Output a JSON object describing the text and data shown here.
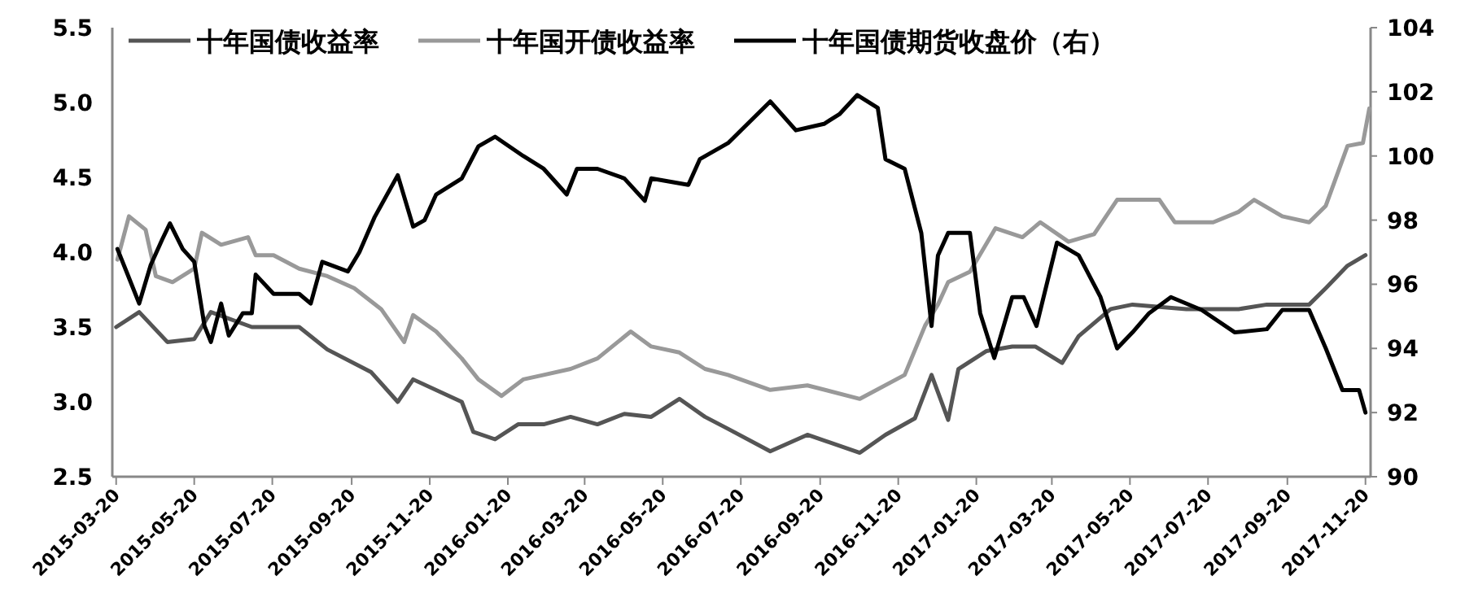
{
  "chart_data": {
    "type": "line",
    "legend": "top",
    "xlim": [
      "2015-03-17",
      "2017-11-24"
    ],
    "xticks": [
      "2015-03-20",
      "2015-05-20",
      "2015-07-20",
      "2015-09-20",
      "2015-11-20",
      "2016-01-20",
      "2016-03-20",
      "2016-05-20",
      "2016-07-20",
      "2016-09-20",
      "2016-11-20",
      "2017-01-20",
      "2017-03-20",
      "2017-05-20",
      "2017-07-20",
      "2017-09-20",
      "2017-11-20"
    ],
    "ylim": [
      2.5,
      5.5
    ],
    "yticks": [
      {
        "value": 2.5,
        "label": "2.5"
      },
      {
        "value": 3,
        "label": "3.0"
      },
      {
        "value": 3.5,
        "label": "3.5"
      },
      {
        "value": 4,
        "label": "4.0"
      },
      {
        "value": 4.5,
        "label": "4.5"
      },
      {
        "value": 5,
        "label": "5.0"
      },
      {
        "value": 5.5,
        "label": "5.5"
      }
    ],
    "y2lim": [
      90,
      104
    ],
    "y2ticks": [
      90,
      92,
      94,
      96,
      98,
      100,
      102,
      104
    ],
    "series": [
      {
        "name": "十年国债收益率",
        "color": "#555555",
        "x": [
          "2015-03-20",
          "2015-04-07",
          "2015-04-29",
          "2015-05-20",
          "2015-06-02",
          "2015-07-04",
          "2015-08-10",
          "2015-09-01",
          "2015-10-05",
          "2015-10-26",
          "2015-11-07",
          "2015-12-15",
          "2015-12-24",
          "2016-01-10",
          "2016-01-28",
          "2016-02-17",
          "2016-03-09",
          "2016-03-30",
          "2016-04-20",
          "2016-05-11",
          "2016-06-02",
          "2016-06-22",
          "2016-07-10",
          "2016-08-12",
          "2016-09-10",
          "2016-10-21",
          "2016-11-10",
          "2016-12-03",
          "2016-12-16",
          "2016-12-29",
          "2017-01-06",
          "2017-01-28",
          "2017-02-17",
          "2017-03-07",
          "2017-03-28",
          "2017-04-10",
          "2017-05-05",
          "2017-05-22",
          "2017-07-03",
          "2017-08-13",
          "2017-09-04",
          "2017-10-07",
          "2017-10-20",
          "2017-11-06",
          "2017-11-20"
        ],
        "values": [
          3.5,
          3.6,
          3.4,
          3.42,
          3.6,
          3.5,
          3.5,
          3.35,
          3.2,
          3.0,
          3.15,
          3.0,
          2.8,
          2.75,
          2.85,
          2.85,
          2.9,
          2.85,
          2.92,
          2.9,
          3.02,
          2.9,
          2.82,
          2.67,
          2.78,
          2.66,
          2.78,
          2.89,
          3.18,
          2.88,
          3.22,
          3.34,
          3.37,
          3.37,
          3.26,
          3.44,
          3.62,
          3.65,
          3.62,
          3.62,
          3.65,
          3.65,
          3.76,
          3.91,
          3.98
        ]
      },
      {
        "name": "十年国开债收益率",
        "color": "#999999",
        "x": [
          "2015-03-21",
          "2015-03-30",
          "2015-04-12",
          "2015-04-20",
          "2015-05-03",
          "2015-05-20",
          "2015-05-26",
          "2015-06-10",
          "2015-07-01",
          "2015-07-07",
          "2015-07-21",
          "2015-08-10",
          "2015-09-01",
          "2015-09-22",
          "2015-10-13",
          "2015-10-31",
          "2015-11-07",
          "2015-11-25",
          "2015-12-15",
          "2015-12-28",
          "2016-01-15",
          "2016-02-01",
          "2016-02-17",
          "2016-03-09",
          "2016-03-30",
          "2016-04-25",
          "2016-05-11",
          "2016-06-02",
          "2016-06-22",
          "2016-07-10",
          "2016-08-12",
          "2016-09-10",
          "2016-10-21",
          "2016-11-25",
          "2016-12-11",
          "2016-12-21",
          "2016-12-29",
          "2017-01-15",
          "2017-02-04",
          "2017-02-25",
          "2017-03-11",
          "2017-04-02",
          "2017-04-22",
          "2017-05-10",
          "2017-06-12",
          "2017-06-24",
          "2017-07-24",
          "2017-08-13",
          "2017-08-25",
          "2017-09-16",
          "2017-10-07",
          "2017-10-20",
          "2017-11-06",
          "2017-11-18",
          "2017-11-23"
        ],
        "values": [
          3.95,
          4.24,
          4.15,
          3.84,
          3.8,
          3.89,
          4.13,
          4.05,
          4.1,
          3.98,
          3.98,
          3.89,
          3.84,
          3.76,
          3.62,
          3.4,
          3.58,
          3.47,
          3.29,
          3.15,
          3.04,
          3.15,
          3.18,
          3.22,
          3.29,
          3.47,
          3.37,
          3.33,
          3.22,
          3.18,
          3.08,
          3.11,
          3.02,
          3.18,
          3.51,
          3.65,
          3.8,
          3.87,
          4.16,
          4.1,
          4.2,
          4.07,
          4.12,
          4.35,
          4.35,
          4.2,
          4.2,
          4.27,
          4.35,
          4.24,
          4.2,
          4.31,
          4.71,
          4.73,
          4.96
        ]
      },
      {
        "name": "十年国债期货收盘价（右）",
        "color": "#000000",
        "axis": "y2",
        "x": [
          "2015-03-21",
          "2015-03-30",
          "2015-04-07",
          "2015-04-16",
          "2015-04-25",
          "2015-05-01",
          "2015-05-11",
          "2015-05-20",
          "2015-05-28",
          "2015-06-02",
          "2015-06-10",
          "2015-06-16",
          "2015-06-27",
          "2015-07-04",
          "2015-07-07",
          "2015-07-21",
          "2015-08-10",
          "2015-08-19",
          "2015-08-28",
          "2015-09-17",
          "2015-09-26",
          "2015-10-08",
          "2015-10-26",
          "2015-11-07",
          "2015-11-16",
          "2015-11-25",
          "2015-12-15",
          "2015-12-28",
          "2016-01-10",
          "2016-02-01",
          "2016-02-17",
          "2016-03-06",
          "2016-03-14",
          "2016-03-30",
          "2016-04-20",
          "2016-05-06",
          "2016-05-11",
          "2016-06-09",
          "2016-06-18",
          "2016-07-10",
          "2016-08-12",
          "2016-09-01",
          "2016-09-23",
          "2016-10-05",
          "2016-10-19",
          "2016-11-04",
          "2016-11-10",
          "2016-11-25",
          "2016-12-08",
          "2016-12-16",
          "2016-12-21",
          "2016-12-29",
          "2017-01-15",
          "2017-01-23",
          "2017-02-03",
          "2017-02-17",
          "2017-02-26",
          "2017-03-08",
          "2017-03-24",
          "2017-04-10",
          "2017-04-27",
          "2017-05-10",
          "2017-05-22",
          "2017-06-04",
          "2017-06-21",
          "2017-07-15",
          "2017-08-10",
          "2017-09-04",
          "2017-09-16",
          "2017-10-07",
          "2017-10-20",
          "2017-11-02",
          "2017-11-15",
          "2017-11-20"
        ],
        "values": [
          97.1,
          96.2,
          95.4,
          96.6,
          97.4,
          97.9,
          97.1,
          96.7,
          94.7,
          94.2,
          95.4,
          94.4,
          95.1,
          95.1,
          96.3,
          95.7,
          95.7,
          95.4,
          96.7,
          96.4,
          97.0,
          98.1,
          99.4,
          97.8,
          98.0,
          98.8,
          99.3,
          100.3,
          100.6,
          100.0,
          99.6,
          98.8,
          99.6,
          99.6,
          99.3,
          98.6,
          99.3,
          99.1,
          99.9,
          100.4,
          101.7,
          100.8,
          101.0,
          101.3,
          101.9,
          101.5,
          99.9,
          99.6,
          97.6,
          94.7,
          96.9,
          97.6,
          97.6,
          95.1,
          93.7,
          95.6,
          95.6,
          94.7,
          97.3,
          96.9,
          95.6,
          94.0,
          94.5,
          95.1,
          95.6,
          95.2,
          94.5,
          94.6,
          95.2,
          95.2,
          94.0,
          92.7,
          92.7,
          92.0
        ]
      }
    ]
  }
}
